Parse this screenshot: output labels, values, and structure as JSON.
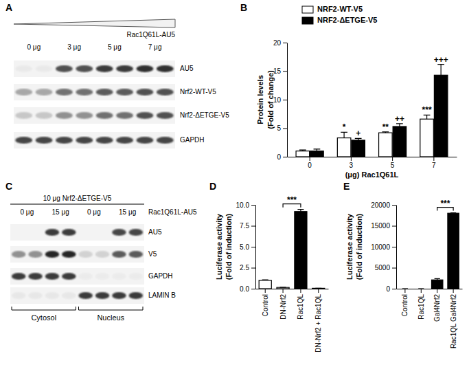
{
  "chart_data": [
    {
      "type": "bar",
      "label": "B",
      "xlabel": "(μg) Rac1Q61L",
      "ylabel": [
        "Protein levels",
        "(Fold of change)"
      ],
      "categories": [
        "0",
        "3",
        "5",
        "7"
      ],
      "series": [
        {
          "name": "NRF2-WT-V5",
          "color": "#ffffff",
          "values": [
            1.0,
            3.3,
            4.2,
            6.6
          ],
          "errors": [
            0.2,
            1.0,
            0.15,
            0.7
          ]
        },
        {
          "name": "NRF2-ΔETGE-V5",
          "color": "#000000",
          "values": [
            1.0,
            2.9,
            5.3,
            14.3
          ],
          "errors": [
            0.35,
            0.3,
            0.5,
            1.9
          ]
        }
      ],
      "annotations": [
        {
          "series": 0,
          "index": 1,
          "text": "*"
        },
        {
          "series": 0,
          "index": 2,
          "text": "**"
        },
        {
          "series": 0,
          "index": 3,
          "text": "***"
        },
        {
          "series": 1,
          "index": 1,
          "text": "+"
        },
        {
          "series": 1,
          "index": 2,
          "text": "++"
        },
        {
          "series": 1,
          "index": 3,
          "text": "+++"
        }
      ],
      "ylim": [
        0,
        20
      ],
      "yticks": [
        0,
        5,
        10,
        15,
        20
      ],
      "legend": "top"
    },
    {
      "type": "bar",
      "label": "D",
      "ylabel": [
        "Luciferase activity",
        "(Fold of induction)"
      ],
      "categories": [
        "Control",
        "DN-Nrf2",
        "Rac1QL",
        "DN-Nrf2 + Rac1QL"
      ],
      "values": [
        1.0,
        0.15,
        9.2,
        0.05
      ],
      "errors": [
        0.05,
        0.02,
        0.25,
        0.01
      ],
      "colors": [
        "#ffffff",
        "#ffffff",
        "#000000",
        "#000000"
      ],
      "annotations": [
        {
          "from": 1,
          "to": 2,
          "text": "***"
        }
      ],
      "ylim": [
        0,
        10
      ],
      "yticks": [
        {
          "value": 0,
          "label": "0.0"
        },
        {
          "value": 2.5,
          "label": "2.5"
        },
        {
          "value": 5,
          "label": "5.0"
        },
        {
          "value": 7.5,
          "label": "7.5"
        },
        {
          "value": 10,
          "label": "10.0"
        }
      ]
    },
    {
      "type": "bar",
      "label": "E",
      "ylabel": [
        "Luciferase activity",
        "(Fold of induction)"
      ],
      "categories": [
        "Control",
        "Rac1QL",
        "Gal4Nrf2",
        "Rac1QL Gal4Nrf2"
      ],
      "values": [
        0,
        0,
        2100,
        18000
      ],
      "errors": [
        0,
        0,
        300,
        100
      ],
      "colors": [
        "#ffffff",
        "#ffffff",
        "#000000",
        "#000000"
      ],
      "annotations": [
        {
          "from": 2,
          "to": 3,
          "text": "***"
        }
      ],
      "ylim": [
        0,
        20000
      ],
      "yticks": [
        0,
        5000,
        10000,
        15000,
        20000
      ]
    }
  ],
  "blots": [
    {
      "label": "A",
      "header": "Rac1Q61L-AU5",
      "lanes": [
        "0 μg",
        "3 μg",
        "5 μg",
        "7 μg"
      ],
      "rows": [
        "AU5",
        "Nrf2-WT-V5",
        "Nrf2-ΔETGE-V5",
        "GAPDH"
      ]
    },
    {
      "label": "C",
      "header": "10 μg Nrf2-ΔETGE-V5",
      "treatment": "Rac1Q61L-AU5",
      "lanes": [
        "0 μg",
        "15 μg",
        "0 μg",
        "15 μg"
      ],
      "rows": [
        "AU5",
        "V5",
        "GAPDH",
        "LAMIN B"
      ],
      "fractions": [
        "Cytosol",
        "Nucleus"
      ]
    }
  ]
}
